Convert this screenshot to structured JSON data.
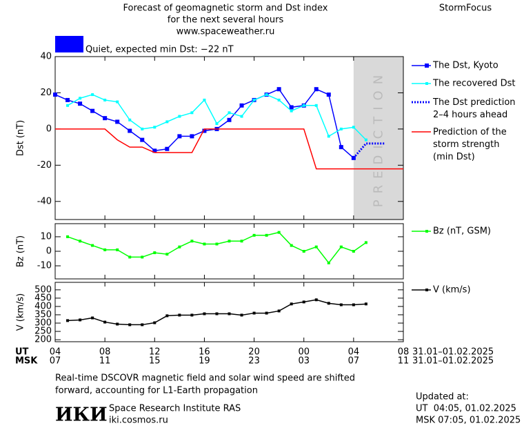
{
  "header": {
    "title": [
      "Forecast of geomagnetic storm and Dst index",
      "for the next several hours",
      "www.spaceweather.ru"
    ],
    "brand": "StormFocus",
    "status": {
      "text": "Quiet, expected min Dst: −22 nT",
      "color": "#0000ff"
    }
  },
  "chart_data": [
    {
      "type": "line",
      "ylabel": "Dst (nT)",
      "xlim": [
        0,
        28
      ],
      "ylim": [
        -50,
        40
      ],
      "yticks": [
        -40,
        -20,
        0,
        20,
        40
      ],
      "grid": false,
      "shade": {
        "x": [
          24,
          28
        ],
        "label": "PREDICTION",
        "color": "#d9d9d9"
      },
      "series": [
        {
          "name": "The Dst, Kyoto",
          "color": "#0000ff",
          "marker": "square",
          "x": [
            0,
            1,
            2,
            3,
            4,
            5,
            6,
            7,
            8,
            9,
            10,
            11,
            12,
            13,
            14,
            15,
            16,
            17,
            18,
            19,
            20,
            21,
            22,
            23,
            24
          ],
          "values": [
            19,
            16,
            14,
            10,
            6,
            4,
            -1,
            -6,
            -12,
            -11,
            -4,
            -4,
            -1,
            0,
            5,
            13,
            16,
            19,
            22,
            12,
            13,
            22,
            19,
            -10,
            -16
          ]
        },
        {
          "name": "The recovered Dst",
          "color": "#00ffff",
          "marker": "square",
          "x": [
            1,
            2,
            3,
            4,
            5,
            6,
            7,
            8,
            9,
            10,
            11,
            12,
            13,
            14,
            15,
            16,
            17,
            18,
            19,
            20,
            21,
            22,
            23,
            24,
            25
          ],
          "values": [
            13,
            17,
            19,
            16,
            15,
            5,
            0,
            1,
            4,
            7,
            9,
            16,
            3,
            9,
            7,
            16,
            19,
            16,
            10,
            13,
            13,
            -4,
            0,
            1,
            -6
          ]
        },
        {
          "name": "The Dst prediction\n2–4 hours ahead",
          "color": "#0000ff",
          "dash": "dotted",
          "x": [
            24,
            25,
            26.5
          ],
          "values": [
            -16,
            -8,
            -8
          ]
        },
        {
          "name": "Prediction of the\nstorm strength\n(min Dst)",
          "color": "#ff0000",
          "x": [
            0,
            4,
            5,
            6,
            7,
            8,
            11,
            12,
            20,
            21,
            28
          ],
          "values": [
            0,
            0,
            -6,
            -10,
            -10,
            -13,
            -13,
            0,
            0,
            -22,
            -22
          ]
        }
      ]
    },
    {
      "type": "line",
      "ylabel": "Bz (nT)",
      "xlim": [
        0,
        28
      ],
      "ylim": [
        -19,
        19
      ],
      "yticks": [
        -10,
        0,
        10
      ],
      "grid": false,
      "series": [
        {
          "name": "Bz (nT, GSM)",
          "color": "#00ff00",
          "marker": "square",
          "x": [
            1,
            2,
            3,
            4,
            5,
            6,
            7,
            8,
            9,
            10,
            11,
            12,
            13,
            14,
            15,
            16,
            17,
            18,
            19,
            20,
            21,
            22,
            23,
            24,
            25
          ],
          "values": [
            10,
            7,
            4,
            1,
            1,
            -4,
            -4,
            -1,
            -2,
            3,
            7,
            5,
            5,
            7,
            7,
            11,
            11,
            13,
            4,
            0,
            3,
            -8,
            3,
            0,
            6
          ]
        }
      ]
    },
    {
      "type": "line",
      "ylabel": "V (km/s)",
      "xlim": [
        0,
        28
      ],
      "ylim": [
        188,
        545
      ],
      "yticks": [
        200,
        250,
        300,
        350,
        400,
        450,
        500
      ],
      "grid": false,
      "series": [
        {
          "name": "V (km/s)",
          "color": "#000000",
          "marker": "square",
          "x": [
            1,
            2,
            3,
            4,
            5,
            6,
            7,
            8,
            9,
            10,
            11,
            12,
            13,
            14,
            15,
            16,
            17,
            18,
            19,
            20,
            21,
            22,
            23,
            24,
            25
          ],
          "values": [
            315,
            319,
            331,
            306,
            294,
            290,
            290,
            302,
            344,
            348,
            348,
            356,
            356,
            356,
            348,
            360,
            360,
            373,
            415,
            427,
            440,
            419,
            410,
            410,
            415
          ]
        }
      ],
      "xlabel": "UT",
      "xticks": [
        {
          "value": 0,
          "label": "04"
        },
        {
          "value": 4,
          "label": "08"
        },
        {
          "value": 8,
          "label": "12"
        },
        {
          "value": 12,
          "label": "16"
        },
        {
          "value": 16,
          "label": "20"
        },
        {
          "value": 20,
          "label": "00"
        },
        {
          "value": 24,
          "label": "04"
        },
        {
          "value": 28,
          "label": "08"
        }
      ],
      "x_date_range": "31.01–01.02.2025",
      "x2label": "MSK",
      "x2ticks": [
        {
          "value": 0,
          "label": "07"
        },
        {
          "value": 4,
          "label": "11"
        },
        {
          "value": 8,
          "label": "15"
        },
        {
          "value": 12,
          "label": "19"
        },
        {
          "value": 16,
          "label": "23"
        },
        {
          "value": 20,
          "label": "03"
        },
        {
          "value": 24,
          "label": "07"
        },
        {
          "value": 28,
          "label": "11"
        }
      ],
      "x2_date_range": "31.01–01.02.2025"
    }
  ],
  "footer": {
    "note": [
      "Real-time DSCOVR magnetic field and solar wind speed are shifted",
      "forward, accounting for L1-Earth propagation"
    ],
    "logo": "ИКИ",
    "institute": "Space Research Institute RAS",
    "site": "iki.cosmos.ru",
    "updated": {
      "title": "Updated at:",
      "ut": "UT  04:05, 01.02.2025",
      "msk": "MSK 07:05, 01.02.2025"
    }
  }
}
